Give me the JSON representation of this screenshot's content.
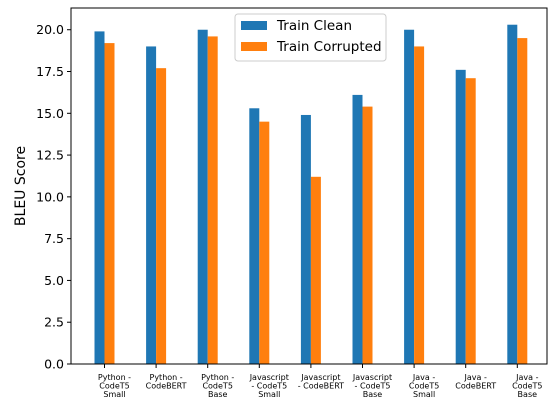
{
  "chart_data": {
    "type": "bar",
    "categories": [
      [
        "Python -",
        "CodeT5",
        "Small"
      ],
      [
        "Python -",
        "CodeBERT"
      ],
      [
        "Python -",
        "CodeT5",
        "Base"
      ],
      [
        "Javascript",
        "- CodeT5",
        "Small"
      ],
      [
        "Javascript",
        "- CodeBERT"
      ],
      [
        "Javascript",
        "- CodeT5",
        "Base"
      ],
      [
        "Java -",
        "CodeT5",
        "Small"
      ],
      [
        "Java -",
        "CodeBERT"
      ],
      [
        "Java -",
        "CodeT5",
        "Base"
      ]
    ],
    "series": [
      {
        "name": "Train Clean",
        "color": "#1f77b4",
        "values": [
          19.9,
          19.0,
          20.0,
          15.3,
          14.9,
          16.1,
          20.0,
          17.6,
          20.3
        ]
      },
      {
        "name": "Train Corrupted",
        "color": "#ff7f0e",
        "values": [
          19.2,
          17.7,
          19.6,
          14.5,
          11.2,
          15.4,
          19.0,
          17.1,
          19.5
        ]
      }
    ],
    "ylabel": "BLEU Score",
    "ylim": [
      0,
      21.3
    ],
    "yticks": [
      "0.0",
      "2.5",
      "5.0",
      "7.5",
      "10.0",
      "12.5",
      "15.0",
      "17.5",
      "20.0"
    ],
    "legend_position": "top-center",
    "grid": false
  }
}
